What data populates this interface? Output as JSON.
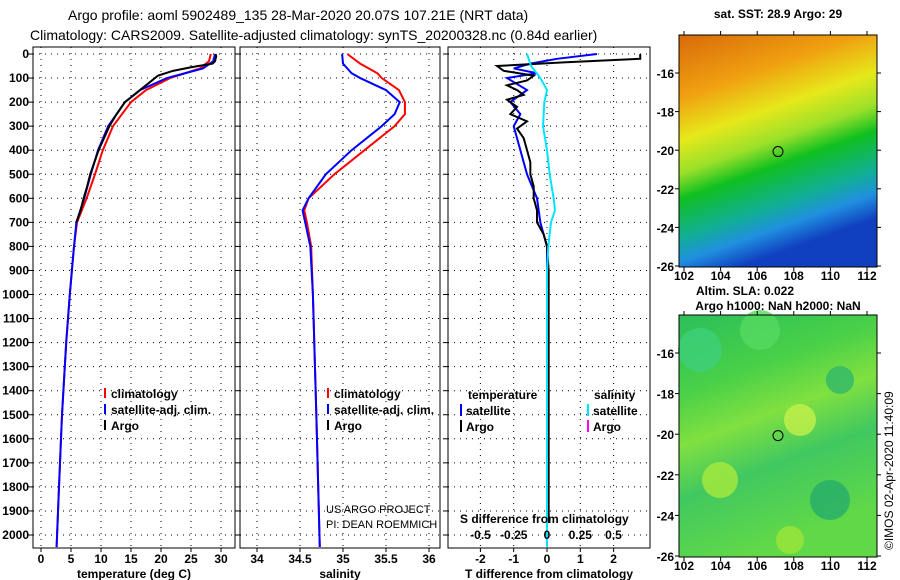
{
  "title_line1": "Argo profile: aoml 5902489_135 28-Mar-2020 20.07S 107.21E (NRT data)",
  "title_line2": "Climatology: CARS2009. Satellite-adjusted climatology: synTS_20200328.nc (0.84d earlier)",
  "colors": {
    "climatology": "#ff0000",
    "satellite": "#0000ff",
    "argo": "#000000",
    "sal_satellite": "#00e5ff",
    "sal_argo": "#ff00ff"
  },
  "chart_data": [
    {
      "type": "line",
      "xlabel": "temperature (deg C)",
      "ylabel": "",
      "xlim": [
        -1,
        31
      ],
      "ylim": [
        2050,
        -30
      ],
      "xticks": [
        "0",
        "5",
        "10",
        "15",
        "20",
        "25",
        "30"
      ],
      "xtickvals": [
        0,
        5,
        10,
        15,
        20,
        25,
        30
      ],
      "yticks": [
        "0",
        "100",
        "200",
        "300",
        "400",
        "500",
        "600",
        "700",
        "800",
        "900",
        "1000",
        "1100",
        "1200",
        "1300",
        "1400",
        "1500",
        "1600",
        "1700",
        "1800",
        "1900",
        "2000"
      ],
      "legend": [
        "climatology",
        "satellite-adj. clim.",
        "Argo"
      ],
      "series": [
        {
          "name": "climatology",
          "color": "#ff0000",
          "depth": [
            0,
            30,
            60,
            80,
            100,
            150,
            200,
            300,
            400,
            500,
            600,
            700,
            800,
            1000,
            1200,
            1500,
            1800,
            2050
          ],
          "values": [
            28.3,
            28,
            26.5,
            24,
            21.5,
            17.5,
            15,
            12,
            10.3,
            9,
            7.6,
            6,
            5.5,
            4.8,
            4.2,
            3.5,
            3,
            2.6
          ]
        },
        {
          "name": "satellite-adj. clim.",
          "color": "#0000ff",
          "depth": [
            0,
            30,
            60,
            80,
            100,
            150,
            200,
            300,
            400,
            500,
            600,
            700,
            800,
            1000,
            1200,
            1500,
            1800,
            2050
          ],
          "values": [
            29,
            28.7,
            27,
            24,
            21,
            16.5,
            14,
            11.2,
            9.5,
            8.3,
            7.2,
            5.9,
            5.5,
            4.8,
            4.2,
            3.5,
            3,
            2.6
          ]
        },
        {
          "name": "Argo",
          "color": "#000000",
          "depth": [
            0,
            10,
            30,
            40,
            55,
            70,
            90,
            110,
            150,
            200,
            250,
            300,
            350,
            400,
            450,
            500,
            550,
            600,
            650,
            700
          ],
          "values": [
            29.1,
            29.2,
            29,
            28.6,
            25,
            22,
            19.5,
            18.5,
            16.5,
            14,
            12.6,
            11.4,
            10.5,
            9.6,
            8.9,
            8.2,
            7.7,
            7.1,
            6.6,
            5.9
          ]
        }
      ]
    },
    {
      "type": "line",
      "xlabel": "salinity",
      "xlim": [
        33.8,
        36.1
      ],
      "ylim": [
        2050,
        -30
      ],
      "xticks": [
        "34",
        "34.5",
        "35",
        "35.5",
        "36"
      ],
      "xtickvals": [
        34,
        34.5,
        35,
        35.5,
        36
      ],
      "legend": [
        "climatology",
        "satellite-adj. clim.",
        "Argo"
      ],
      "annotation": [
        "US ARGO PROJECT",
        "PI: DEAN ROEMMICH"
      ],
      "series": [
        {
          "name": "climatology",
          "color": "#ff0000",
          "depth": [
            0,
            40,
            80,
            100,
            150,
            200,
            250,
            300,
            400,
            500,
            600,
            650,
            700,
            800,
            1000,
            1500,
            2050
          ],
          "values": [
            35.05,
            35.2,
            35.4,
            35.45,
            35.65,
            35.72,
            35.72,
            35.6,
            35.25,
            34.9,
            34.6,
            34.55,
            34.58,
            34.63,
            34.65,
            34.69,
            34.73
          ]
        },
        {
          "name": "satellite-adj. clim.",
          "color": "#0000ff",
          "depth": [
            0,
            40,
            80,
            100,
            150,
            200,
            250,
            300,
            400,
            500,
            600,
            650,
            700,
            800,
            1000,
            1500,
            2050
          ],
          "values": [
            34.99,
            35.0,
            35.1,
            35.2,
            35.5,
            35.66,
            35.6,
            35.45,
            35.1,
            34.8,
            34.6,
            34.53,
            34.56,
            34.62,
            34.65,
            34.69,
            34.73
          ]
        }
      ]
    },
    {
      "type": "line",
      "xlabel": "T difference from climatology",
      "xlabel2": "S difference from climatology",
      "xlim": [
        -3,
        3
      ],
      "ylim": [
        2050,
        -30
      ],
      "xticks": [
        "-2",
        "-1",
        "0",
        "1",
        "2"
      ],
      "xtickvals": [
        -2,
        -1,
        0,
        1,
        2
      ],
      "sticks": [
        "-0.5",
        "-0.25",
        "0",
        "0.25",
        "0.5"
      ],
      "stickvals": [
        -0.5,
        -0.25,
        0,
        0.25,
        0.5
      ],
      "legend_t_title": "temperature",
      "legend_s_title": "salinity",
      "legend": [
        "satellite",
        "Argo",
        "satellite",
        "Argo"
      ],
      "series": [
        {
          "name": "T satellite",
          "color": "#0000ff",
          "depth": [
            0,
            20,
            40,
            60,
            80,
            100,
            150,
            200,
            250,
            300,
            400,
            500,
            600,
            700,
            800,
            900,
            1000,
            1500,
            1900
          ],
          "values": [
            1.5,
            0.3,
            -0.5,
            -1.0,
            -0.3,
            -1.2,
            -0.6,
            -1.1,
            -0.8,
            -1.0,
            -0.8,
            -0.6,
            -0.3,
            -0.2,
            0,
            0,
            0,
            0,
            0
          ]
        },
        {
          "name": "T Argo",
          "color": "#000000",
          "depth": [
            0,
            20,
            35,
            50,
            70,
            90,
            110,
            130,
            150,
            170,
            190,
            220,
            250,
            280,
            310,
            350,
            400,
            450,
            500,
            550,
            600,
            650,
            700,
            750,
            800,
            900,
            1000,
            1500,
            1950
          ],
          "values": [
            2.8,
            2.8,
            0.5,
            -1.5,
            -1.3,
            -0.4,
            -0.6,
            -1.2,
            -0.9,
            -0.7,
            -1.2,
            -0.9,
            -1.1,
            -0.6,
            -0.9,
            -0.7,
            -0.6,
            -0.5,
            -0.5,
            -0.4,
            -0.4,
            -0.3,
            -0.3,
            -0.1,
            0,
            0.05,
            0.05,
            0.05,
            0.05
          ]
        },
        {
          "name": "S satellite",
          "color": "#00e5ff",
          "depth": [
            0,
            50,
            100,
            150,
            200,
            300,
            400,
            500,
            600,
            650,
            700,
            800,
            900,
            1000,
            1500,
            2050
          ],
          "values": [
            -0.15,
            -0.12,
            -0.05,
            0.0,
            -0.02,
            -0.03,
            0,
            0.02,
            0.05,
            0.06,
            0.03,
            0.01,
            0,
            0,
            0,
            0
          ]
        }
      ]
    }
  ],
  "map1": {
    "title": "sat. SST: 28.9 Argo: 29",
    "subtitle": "Altim. SLA: 0.022",
    "xticks": [
      "102",
      "104",
      "106",
      "108",
      "110",
      "112"
    ],
    "yticks": [
      "-16",
      "-18",
      "-20",
      "-22",
      "-24",
      "-26"
    ]
  },
  "map2": {
    "title": "Argo h1000: NaN h2000: NaN",
    "xticks": [
      "102",
      "104",
      "106",
      "108",
      "110",
      "112"
    ],
    "yticks": [
      "-16",
      "-18",
      "-20",
      "-22",
      "-24",
      "-26"
    ]
  },
  "footer": "©IMOS 02-Apr-2020 11:40:09"
}
